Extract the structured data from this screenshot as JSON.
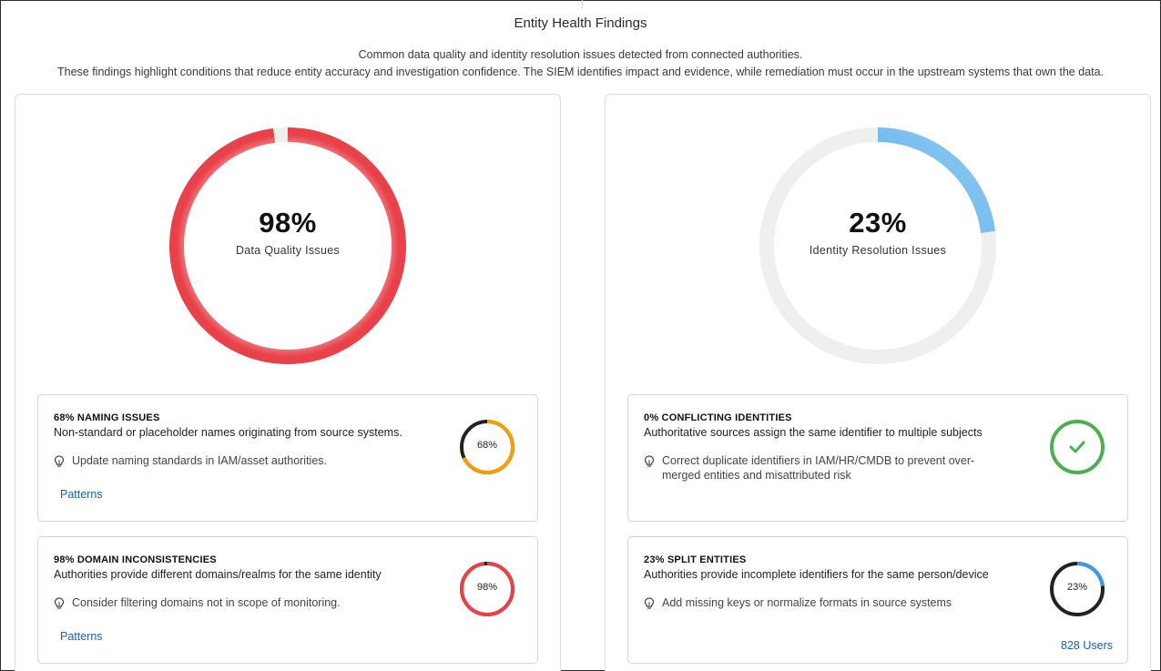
{
  "header": {
    "title": "Entity Health Findings",
    "subtitle_line1": "Common data quality and identity resolution issues detected from connected authorities.",
    "subtitle_line2": "These findings highlight conditions that reduce entity accuracy and investigation confidence. The SIEM identifies impact and evidence, while remediation must occur in the upstream systems that own the data."
  },
  "colors": {
    "red": "#e8414a",
    "red_light": "#f5a3a8",
    "orange": "#f59e0b",
    "blue": "#3a9be8",
    "green": "#4caf50",
    "track": "#efefef",
    "dark_track": "#222222"
  },
  "left_panel": {
    "summary": {
      "value_text": "98%",
      "percent": 98,
      "label": "Data Quality Issues"
    },
    "cards": [
      {
        "title": "68% NAMING ISSUES",
        "description": "Non-standard or placeholder names originating from source systems.",
        "tip_icon": "lightbulb-icon",
        "tip": "Update naming standards in IAM/asset authorities.",
        "ring_text": "68%",
        "percent": 68,
        "link": "Patterns"
      },
      {
        "title": "98% DOMAIN INCONSISTENCIES",
        "description": "Authorities provide different domains/realms for the same identity",
        "tip_icon": "lightbulb-icon",
        "tip": "Consider filtering domains not in scope of monitoring.",
        "ring_text": "98%",
        "percent": 98,
        "link": "Patterns"
      }
    ]
  },
  "right_panel": {
    "summary": {
      "value_text": "23%",
      "percent": 23,
      "label": "Identity Resolution Issues"
    },
    "cards": [
      {
        "title": "0% CONFLICTING IDENTITIES",
        "description": "Authoritative sources assign the same identifier to multiple subjects",
        "tip_icon": "lightbulb-icon",
        "tip": "Correct duplicate identifiers in IAM/HR/CMDB to prevent over-merged entities and misattributed risk",
        "ring_icon": "checkmark-icon",
        "percent": 0
      },
      {
        "title": "23% SPLIT ENTITIES",
        "description": "Authorities provide incomplete identifiers for the same person/device",
        "tip_icon": "lightbulb-icon",
        "tip": "Add missing keys or normalize formats in source systems",
        "ring_text": "23%",
        "percent": 23,
        "link": "828 Users"
      }
    ]
  }
}
